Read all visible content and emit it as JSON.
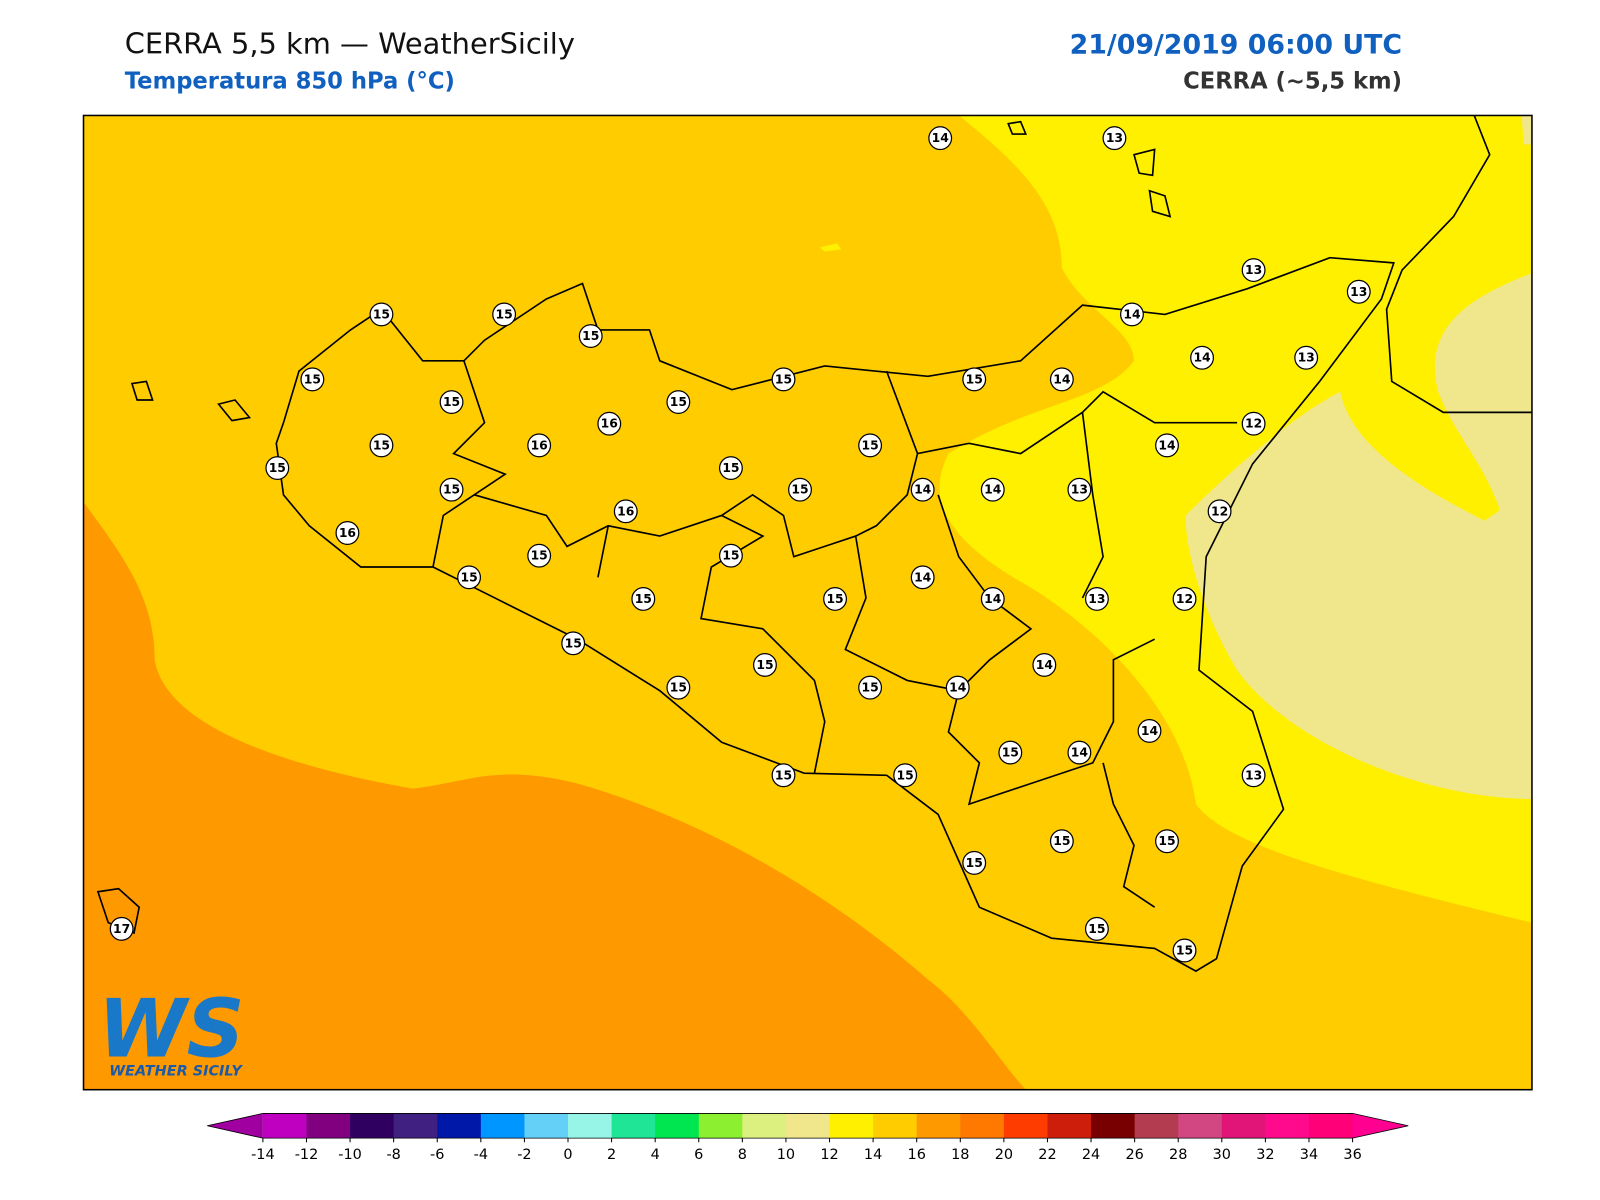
{
  "header": {
    "title": "CERRA 5,5 km — WeatherSicily",
    "subtitle": "Temperatura 850 hPa (°C)",
    "datetime": "21/09/2019 06:00 UTC",
    "model": "CERRA (~5,5 km)"
  },
  "stations": [
    14,
    13,
    13,
    13,
    15,
    15,
    15,
    14,
    14,
    13,
    15,
    15,
    15,
    14,
    15,
    15,
    16,
    12,
    15,
    16,
    15,
    14,
    15,
    15,
    15,
    15,
    14,
    14,
    13,
    12,
    16,
    16,
    15,
    15,
    15,
    14,
    15,
    15,
    14,
    13,
    12,
    15,
    14,
    15,
    15,
    15,
    14,
    14,
    15,
    14,
    15,
    15,
    13,
    15,
    15,
    15,
    17,
    15,
    15
  ],
  "colorbar": {
    "ticks": [
      -14,
      -12,
      -10,
      -8,
      -6,
      -4,
      -2,
      0,
      2,
      4,
      6,
      8,
      10,
      12,
      14,
      16,
      18,
      20,
      22,
      24,
      26,
      28,
      30,
      32,
      34,
      36
    ],
    "colors": [
      "#c000c0",
      "#800080",
      "#300060",
      "#402080",
      "#0018a8",
      "#0096ff",
      "#64d0f8",
      "#96f5e6",
      "#1ee696",
      "#00e650",
      "#8cf030",
      "#dcf080",
      "#f0e68c",
      "#fff000",
      "#ffcc00",
      "#ff9900",
      "#ff7800",
      "#ff3c00",
      "#cc1e0a",
      "#780000",
      "#b43c50",
      "#d24682",
      "#e11478",
      "#ff0a8c",
      "#ff0078"
    ],
    "under": "#a000a0",
    "over": "#ff0090"
  },
  "logo": {
    "mark": "WS",
    "name": "WEATHER SICILY"
  }
}
